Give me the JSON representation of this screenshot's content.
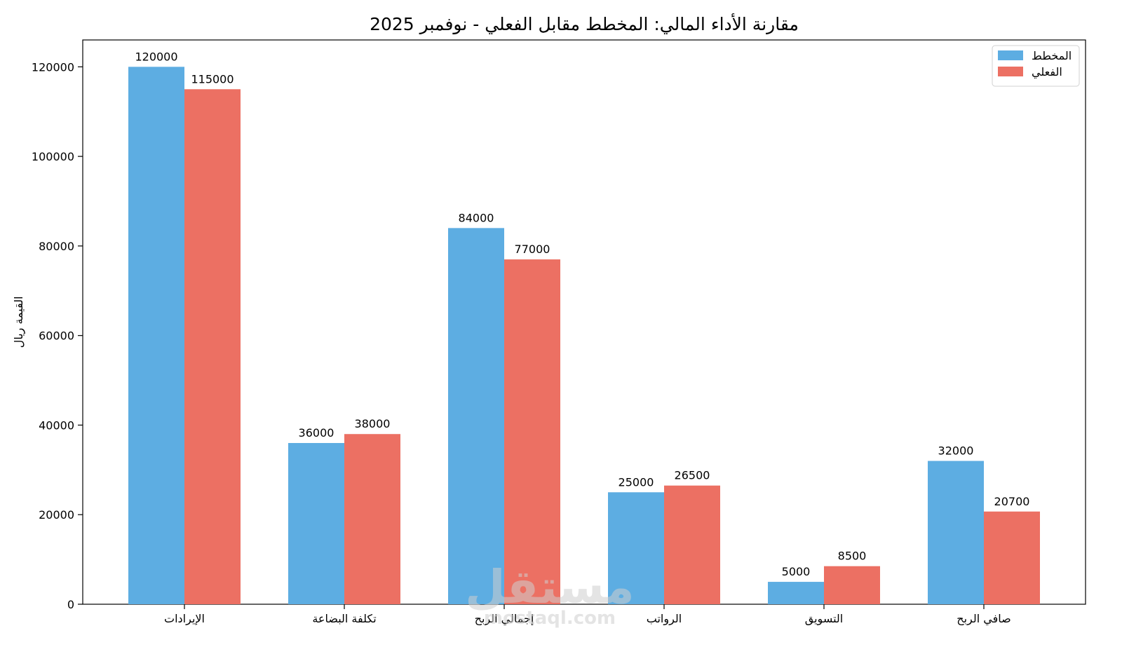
{
  "chart_data": {
    "type": "bar",
    "title": "مقارنة الأداء المالي: المخطط مقابل الفعلي - نوفمبر 2025",
    "xlabel": "",
    "ylabel": "القيمة ريال",
    "categories": [
      "الإيرادات",
      "تكلفة البضاعة",
      "إجمالي الربح",
      "الرواتب",
      "التسويق",
      "صافي الربح"
    ],
    "series": [
      {
        "name": "المخطط",
        "color": "#5dade2",
        "values": [
          120000,
          36000,
          84000,
          25000,
          5000,
          32000
        ]
      },
      {
        "name": "الفعلي",
        "color": "#ec7063",
        "values": [
          115000,
          38000,
          77000,
          26500,
          8500,
          20700
        ]
      }
    ],
    "ylim": [
      0,
      126000
    ],
    "yticks": [
      0,
      20000,
      40000,
      60000,
      80000,
      100000,
      120000
    ],
    "grid": false,
    "legend_position": "top-right",
    "watermark": {
      "text_ar": "مستقل",
      "text_en": "mostaql.com"
    }
  }
}
